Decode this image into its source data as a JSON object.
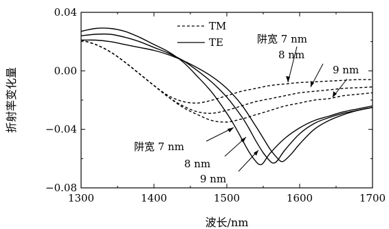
{
  "chart_data": {
    "type": "line",
    "title": "",
    "xlabel": "波长/nm",
    "ylabel": "折射率变化量",
    "xlim": [
      1300,
      1700
    ],
    "ylim": [
      -0.08,
      0.04
    ],
    "x_ticks": [
      1300,
      1400,
      1500,
      1600,
      1700
    ],
    "x_tick_labels": [
      "1300",
      "1400",
      "1500",
      "1600",
      "1700"
    ],
    "y_ticks": [
      0.04,
      0.0,
      -0.04,
      -0.08
    ],
    "y_tick_labels": [
      "0.04",
      "0.00",
      "−0.04",
      "−0.08"
    ],
    "grid": false,
    "legend": {
      "position": "top-center",
      "entries": [
        {
          "label": "TM",
          "style": "dashed"
        },
        {
          "label": "TE",
          "style": "solid"
        }
      ]
    },
    "series": [
      {
        "name": "TM",
        "gap": "7 nm",
        "style": "dashed",
        "x": [
          1300,
          1320,
          1340,
          1360,
          1380,
          1400,
          1420,
          1440,
          1460,
          1480,
          1500,
          1520,
          1540,
          1560,
          1580,
          1600,
          1620,
          1640,
          1660,
          1680,
          1700
        ],
        "y": [
          0.021,
          0.018,
          0.013,
          0.006,
          -0.002,
          -0.01,
          -0.017,
          -0.021,
          -0.022,
          -0.02,
          -0.017,
          -0.014,
          -0.012,
          -0.01,
          -0.009,
          -0.008,
          -0.0075,
          -0.007,
          -0.0065,
          -0.006,
          -0.006
        ]
      },
      {
        "name": "TM",
        "gap": "8 nm",
        "style": "dashed",
        "x": [
          1300,
          1320,
          1340,
          1360,
          1380,
          1400,
          1420,
          1440,
          1460,
          1480,
          1500,
          1520,
          1540,
          1560,
          1580,
          1600,
          1620,
          1640,
          1660,
          1680,
          1700
        ],
        "y": [
          0.021,
          0.018,
          0.013,
          0.006,
          -0.002,
          -0.01,
          -0.018,
          -0.024,
          -0.028,
          -0.029,
          -0.027,
          -0.024,
          -0.021,
          -0.019,
          -0.017,
          -0.015,
          -0.014,
          -0.013,
          -0.012,
          -0.0115,
          -0.011
        ]
      },
      {
        "name": "TM",
        "gap": "9 nm",
        "style": "dashed",
        "x": [
          1300,
          1320,
          1340,
          1360,
          1380,
          1400,
          1420,
          1440,
          1460,
          1480,
          1500,
          1520,
          1540,
          1560,
          1580,
          1600,
          1620,
          1640,
          1660,
          1680,
          1700
        ],
        "y": [
          0.021,
          0.018,
          0.013,
          0.006,
          -0.002,
          -0.01,
          -0.018,
          -0.025,
          -0.03,
          -0.034,
          -0.035,
          -0.033,
          -0.03,
          -0.027,
          -0.024,
          -0.022,
          -0.02,
          -0.019,
          -0.017,
          -0.016,
          -0.015
        ]
      },
      {
        "name": "TE",
        "gap": "7 nm",
        "style": "solid",
        "x": [
          1300,
          1320,
          1340,
          1360,
          1380,
          1400,
          1420,
          1440,
          1460,
          1480,
          1500,
          1510,
          1520,
          1530,
          1540,
          1545,
          1550,
          1560,
          1580,
          1600,
          1620,
          1640,
          1660,
          1680,
          1700
        ],
        "y": [
          0.027,
          0.029,
          0.029,
          0.027,
          0.023,
          0.018,
          0.013,
          0.006,
          -0.004,
          -0.015,
          -0.029,
          -0.037,
          -0.046,
          -0.055,
          -0.062,
          -0.064,
          -0.063,
          -0.056,
          -0.046,
          -0.039,
          -0.034,
          -0.031,
          -0.028,
          -0.026,
          -0.024
        ]
      },
      {
        "name": "TE",
        "gap": "8 nm",
        "style": "solid",
        "x": [
          1300,
          1320,
          1340,
          1360,
          1380,
          1400,
          1420,
          1440,
          1460,
          1480,
          1500,
          1520,
          1530,
          1540,
          1550,
          1560,
          1565,
          1570,
          1580,
          1600,
          1620,
          1640,
          1660,
          1680,
          1700
        ],
        "y": [
          0.024,
          0.025,
          0.025,
          0.023,
          0.02,
          0.016,
          0.012,
          0.007,
          0.0,
          -0.008,
          -0.018,
          -0.031,
          -0.039,
          -0.048,
          -0.056,
          -0.062,
          -0.063,
          -0.061,
          -0.054,
          -0.043,
          -0.036,
          -0.032,
          -0.029,
          -0.027,
          -0.025
        ]
      },
      {
        "name": "TE",
        "gap": "9 nm",
        "style": "solid",
        "x": [
          1300,
          1320,
          1340,
          1360,
          1380,
          1400,
          1420,
          1440,
          1460,
          1480,
          1500,
          1520,
          1540,
          1550,
          1560,
          1570,
          1575,
          1580,
          1590,
          1600,
          1620,
          1640,
          1660,
          1680,
          1700
        ],
        "y": [
          0.021,
          0.021,
          0.02,
          0.018,
          0.016,
          0.014,
          0.011,
          0.007,
          0.002,
          -0.004,
          -0.012,
          -0.023,
          -0.038,
          -0.046,
          -0.054,
          -0.06,
          -0.062,
          -0.061,
          -0.056,
          -0.05,
          -0.04,
          -0.034,
          -0.03,
          -0.027,
          -0.025
        ]
      }
    ],
    "annotations": [
      {
        "text": "阱宽 7 nm"
      },
      {
        "text": "8 nm"
      },
      {
        "text": "9 nm"
      },
      {
        "text": "阱宽 7 nm"
      },
      {
        "text": "8 nm"
      },
      {
        "text": "9 nm"
      }
    ]
  }
}
